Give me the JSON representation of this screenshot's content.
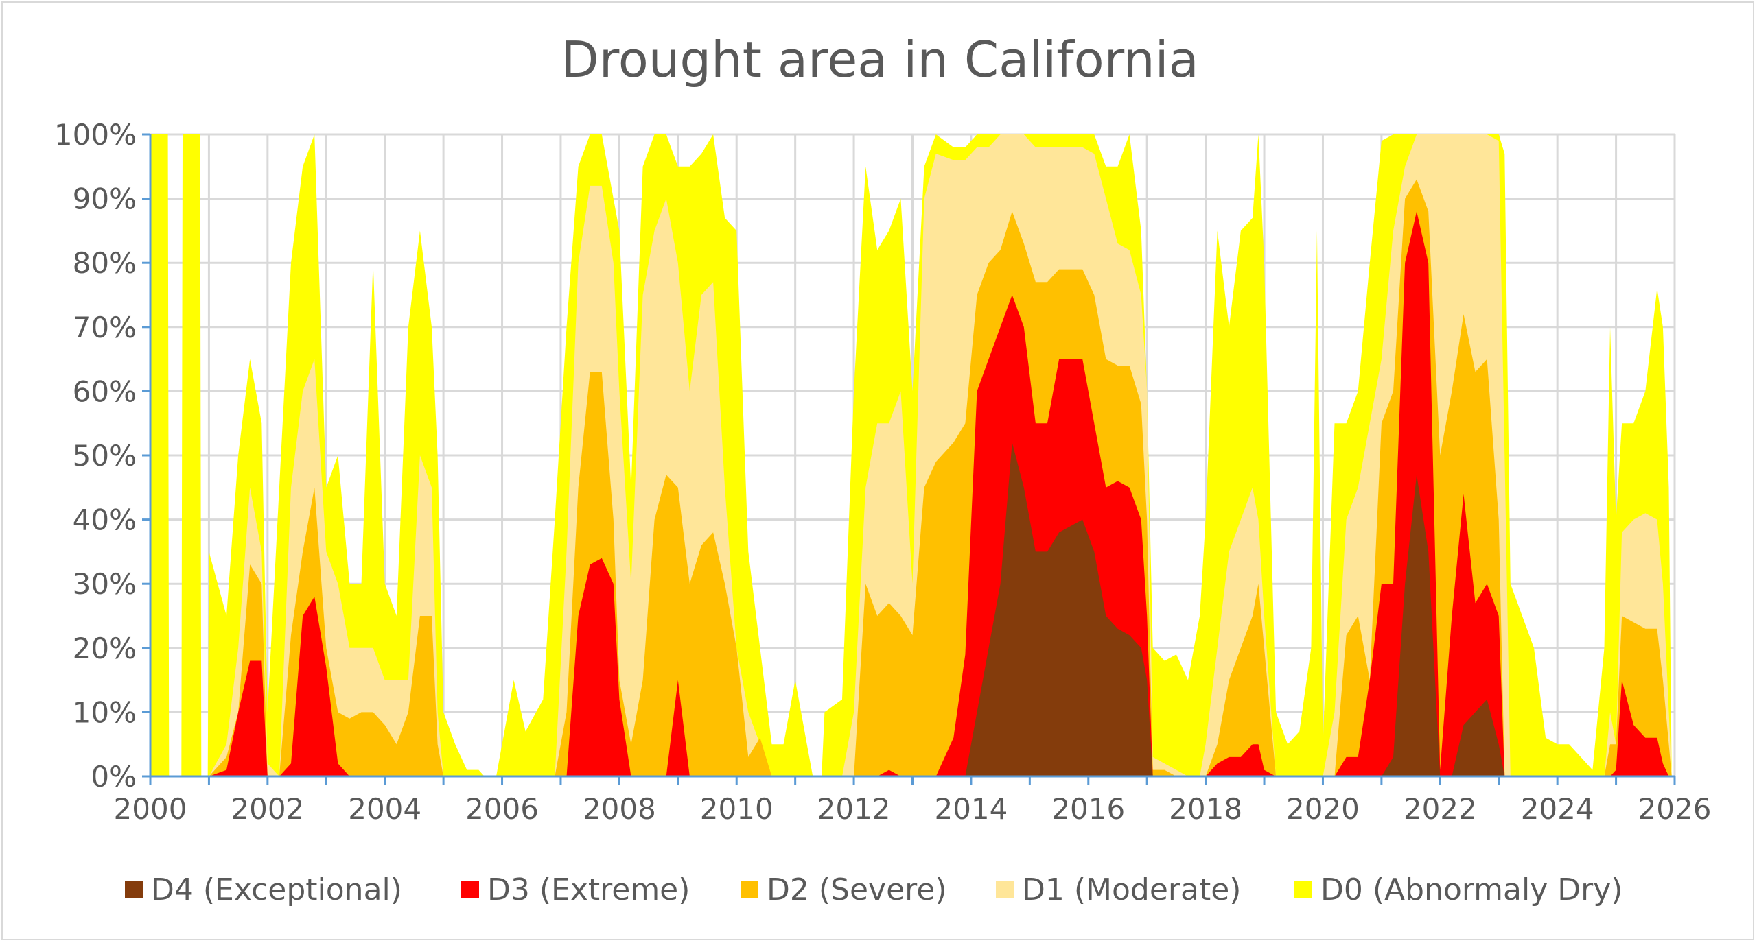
{
  "chart_data": {
    "type": "area",
    "title": "Drought area in California",
    "xlabel": "",
    "ylabel": "",
    "xlim": [
      2000,
      2026
    ],
    "ylim": [
      0,
      100
    ],
    "x_ticks": [
      "2000",
      "2002",
      "2004",
      "2006",
      "2008",
      "2010",
      "2012",
      "2014",
      "2016",
      "2018",
      "2020",
      "2022",
      "2024",
      "2026"
    ],
    "y_ticks": [
      "0%",
      "10%",
      "20%",
      "30%",
      "40%",
      "50%",
      "60%",
      "70%",
      "80%",
      "90%",
      "100%"
    ],
    "grid": true,
    "legend_position": "bottom",
    "stacking": "overlapping cumulative areas (each category includes more severe categories)",
    "series": [
      {
        "key": "D0",
        "name": "D0 (Abnormaly Dry)",
        "color": "#FFFF00"
      },
      {
        "key": "D1",
        "name": "D1 (Moderate)",
        "color": "#FFE699"
      },
      {
        "key": "D2",
        "name": "D2 (Severe)",
        "color": "#FFC000"
      },
      {
        "key": "D3",
        "name": "D3 (Extreme)",
        "color": "#FF0000"
      },
      {
        "key": "D4",
        "name": "D4 (Exceptional)",
        "color": "#843C0C"
      }
    ],
    "legend_order": [
      "D4",
      "D3",
      "D2",
      "D1",
      "D0"
    ],
    "columns": [
      "year",
      "D0",
      "D1",
      "D2",
      "D3",
      "D4"
    ],
    "rows": [
      [
        2000.0,
        100,
        0,
        0,
        0,
        0
      ],
      [
        2000.3,
        100,
        0,
        0,
        0,
        0
      ],
      [
        2000.32,
        0,
        0,
        0,
        0,
        0
      ],
      [
        2000.53,
        0,
        0,
        0,
        0,
        0
      ],
      [
        2000.55,
        100,
        0,
        0,
        0,
        0
      ],
      [
        2000.85,
        100,
        0,
        0,
        0,
        0
      ],
      [
        2000.87,
        0,
        0,
        0,
        0,
        0
      ],
      [
        2000.98,
        0,
        0,
        0,
        0,
        0
      ],
      [
        2001.0,
        35,
        0,
        0,
        0,
        0
      ],
      [
        2001.3,
        25,
        5,
        3,
        1,
        0
      ],
      [
        2001.5,
        50,
        20,
        10,
        10,
        0
      ],
      [
        2001.7,
        65,
        45,
        33,
        18,
        0
      ],
      [
        2001.9,
        55,
        35,
        30,
        18,
        0
      ],
      [
        2002.0,
        10,
        2,
        0,
        0,
        0
      ],
      [
        2002.2,
        45,
        0,
        0,
        0,
        0
      ],
      [
        2002.4,
        80,
        45,
        22,
        2,
        0
      ],
      [
        2002.6,
        95,
        60,
        35,
        25,
        0
      ],
      [
        2002.8,
        100,
        65,
        45,
        28,
        0
      ],
      [
        2003.0,
        45,
        35,
        20,
        17,
        0
      ],
      [
        2003.2,
        50,
        30,
        10,
        2,
        0
      ],
      [
        2003.4,
        30,
        20,
        9,
        0,
        0
      ],
      [
        2003.6,
        30,
        20,
        10,
        0,
        0
      ],
      [
        2003.8,
        80,
        20,
        10,
        0,
        0
      ],
      [
        2004.0,
        30,
        15,
        8,
        0,
        0
      ],
      [
        2004.2,
        25,
        15,
        5,
        0,
        0
      ],
      [
        2004.4,
        70,
        15,
        10,
        0,
        0
      ],
      [
        2004.6,
        85,
        50,
        25,
        0,
        0
      ],
      [
        2004.8,
        70,
        45,
        25,
        0,
        0
      ],
      [
        2004.9,
        50,
        10,
        5,
        0,
        0
      ],
      [
        2005.0,
        10,
        0,
        0,
        0,
        0
      ],
      [
        2005.2,
        5,
        0,
        0,
        0,
        0
      ],
      [
        2005.4,
        1,
        0,
        0,
        0,
        0
      ],
      [
        2005.6,
        1,
        0,
        0,
        0,
        0
      ],
      [
        2005.7,
        0,
        0,
        0,
        0,
        0
      ],
      [
        2005.9,
        0,
        0,
        0,
        0,
        0
      ],
      [
        2006.0,
        5,
        0,
        0,
        0,
        0
      ],
      [
        2006.2,
        15,
        0,
        0,
        0,
        0
      ],
      [
        2006.4,
        7,
        0,
        0,
        0,
        0
      ],
      [
        2006.7,
        12,
        0,
        0,
        0,
        0
      ],
      [
        2006.9,
        40,
        0,
        0,
        0,
        0
      ],
      [
        2007.1,
        70,
        35,
        10,
        0,
        0
      ],
      [
        2007.3,
        95,
        80,
        45,
        25,
        0
      ],
      [
        2007.5,
        100,
        92,
        63,
        33,
        0
      ],
      [
        2007.7,
        100,
        92,
        63,
        34,
        0
      ],
      [
        2007.9,
        90,
        80,
        40,
        30,
        0
      ],
      [
        2008.0,
        85,
        60,
        15,
        12,
        0
      ],
      [
        2008.2,
        45,
        30,
        5,
        0,
        0
      ],
      [
        2008.4,
        95,
        75,
        15,
        0,
        0
      ],
      [
        2008.6,
        100,
        85,
        40,
        0,
        0
      ],
      [
        2008.8,
        100,
        90,
        47,
        0,
        0
      ],
      [
        2009.0,
        95,
        80,
        45,
        15,
        0
      ],
      [
        2009.2,
        95,
        60,
        30,
        0,
        0
      ],
      [
        2009.4,
        97,
        75,
        36,
        0,
        0
      ],
      [
        2009.6,
        100,
        77,
        38,
        0,
        0
      ],
      [
        2009.8,
        87,
        45,
        30,
        0,
        0
      ],
      [
        2010.0,
        85,
        20,
        20,
        0,
        0
      ],
      [
        2010.2,
        35,
        10,
        3,
        0,
        0
      ],
      [
        2010.4,
        20,
        5,
        6,
        0,
        0
      ],
      [
        2010.6,
        5,
        0,
        0,
        0,
        0
      ],
      [
        2010.8,
        5,
        0,
        0,
        0,
        0
      ],
      [
        2011.0,
        15,
        0,
        0,
        0,
        0
      ],
      [
        2011.2,
        5,
        0,
        0,
        0,
        0
      ],
      [
        2011.3,
        0,
        0,
        0,
        0,
        0
      ],
      [
        2011.45,
        0,
        0,
        0,
        0,
        0
      ],
      [
        2011.5,
        10,
        0,
        0,
        0,
        0
      ],
      [
        2011.8,
        12,
        0,
        0,
        0,
        0
      ],
      [
        2012.0,
        60,
        10,
        0,
        0,
        0
      ],
      [
        2012.2,
        95,
        45,
        30,
        0,
        0
      ],
      [
        2012.4,
        82,
        55,
        25,
        0,
        0
      ],
      [
        2012.6,
        85,
        55,
        27,
        1,
        0
      ],
      [
        2012.8,
        90,
        60,
        25,
        0,
        0
      ],
      [
        2013.0,
        60,
        30,
        22,
        0,
        0
      ],
      [
        2013.2,
        95,
        90,
        45,
        0,
        0
      ],
      [
        2013.4,
        100,
        97,
        49,
        0,
        0
      ],
      [
        2013.7,
        98,
        96,
        52,
        6,
        0
      ],
      [
        2013.9,
        98,
        96,
        55,
        19,
        0
      ],
      [
        2014.1,
        100,
        98,
        75,
        60,
        10
      ],
      [
        2014.3,
        100,
        98,
        80,
        65,
        20
      ],
      [
        2014.5,
        100,
        100,
        82,
        70,
        30
      ],
      [
        2014.7,
        100,
        100,
        88,
        75,
        52
      ],
      [
        2014.9,
        100,
        100,
        83,
        70,
        45
      ],
      [
        2015.1,
        100,
        98,
        77,
        55,
        35
      ],
      [
        2015.3,
        100,
        98,
        77,
        55,
        35
      ],
      [
        2015.5,
        100,
        98,
        79,
        65,
        38
      ],
      [
        2015.7,
        100,
        98,
        79,
        65,
        39
      ],
      [
        2015.9,
        100,
        98,
        79,
        65,
        40
      ],
      [
        2016.1,
        100,
        97,
        75,
        55,
        35
      ],
      [
        2016.3,
        95,
        90,
        65,
        45,
        25
      ],
      [
        2016.5,
        95,
        83,
        64,
        46,
        23
      ],
      [
        2016.7,
        100,
        82,
        64,
        45,
        22
      ],
      [
        2016.9,
        85,
        75,
        58,
        40,
        20
      ],
      [
        2017.0,
        60,
        60,
        40,
        25,
        15
      ],
      [
        2017.1,
        20,
        3,
        1,
        0,
        0
      ],
      [
        2017.3,
        18,
        2,
        1,
        0,
        0
      ],
      [
        2017.5,
        19,
        1,
        0,
        0,
        0
      ],
      [
        2017.7,
        15,
        0,
        0,
        0,
        0
      ],
      [
        2017.9,
        25,
        0,
        0,
        0,
        0
      ],
      [
        2018.0,
        40,
        5,
        0,
        0,
        0
      ],
      [
        2018.2,
        85,
        20,
        5,
        2,
        0
      ],
      [
        2018.4,
        70,
        35,
        15,
        3,
        0
      ],
      [
        2018.6,
        85,
        40,
        20,
        3,
        0
      ],
      [
        2018.8,
        87,
        45,
        25,
        5,
        0
      ],
      [
        2018.9,
        100,
        40,
        30,
        5,
        0
      ],
      [
        2019.0,
        80,
        25,
        20,
        1,
        0
      ],
      [
        2019.2,
        10,
        0,
        0,
        0,
        0
      ],
      [
        2019.4,
        5,
        0,
        0,
        0,
        0
      ],
      [
        2019.6,
        7,
        0,
        0,
        0,
        0
      ],
      [
        2019.8,
        20,
        0,
        0,
        0,
        0
      ],
      [
        2019.9,
        85,
        0,
        0,
        0,
        0
      ],
      [
        2020.0,
        5,
        0,
        0,
        0,
        0
      ],
      [
        2020.2,
        55,
        10,
        0,
        0,
        0
      ],
      [
        2020.4,
        55,
        40,
        22,
        3,
        0
      ],
      [
        2020.6,
        60,
        45,
        25,
        3,
        0
      ],
      [
        2020.8,
        80,
        55,
        15,
        15,
        0
      ],
      [
        2021.0,
        99,
        65,
        55,
        30,
        0
      ],
      [
        2021.2,
        100,
        85,
        60,
        30,
        3
      ],
      [
        2021.4,
        100,
        95,
        90,
        80,
        30
      ],
      [
        2021.6,
        100,
        100,
        93,
        88,
        47
      ],
      [
        2021.8,
        100,
        100,
        88,
        80,
        35
      ],
      [
        2022.0,
        100,
        100,
        50,
        1,
        0
      ],
      [
        2022.2,
        100,
        100,
        60,
        25,
        0
      ],
      [
        2022.4,
        100,
        100,
        72,
        44,
        8
      ],
      [
        2022.6,
        100,
        100,
        63,
        27,
        10
      ],
      [
        2022.8,
        100,
        100,
        65,
        30,
        12
      ],
      [
        2023.0,
        100,
        99,
        40,
        25,
        5
      ],
      [
        2023.1,
        97,
        50,
        0,
        0,
        0
      ],
      [
        2023.2,
        30,
        0,
        0,
        0,
        0
      ],
      [
        2023.4,
        25,
        0,
        0,
        0,
        0
      ],
      [
        2023.6,
        20,
        0,
        0,
        0,
        0
      ],
      [
        2023.8,
        6,
        0,
        0,
        0,
        0
      ],
      [
        2024.0,
        5,
        0,
        0,
        0,
        0
      ],
      [
        2024.2,
        5,
        0,
        0,
        0,
        0
      ],
      [
        2024.4,
        3,
        0,
        0,
        0,
        0
      ],
      [
        2024.6,
        1,
        0,
        0,
        0,
        0
      ],
      [
        2024.8,
        20,
        0,
        0,
        0,
        0
      ],
      [
        2024.9,
        70,
        10,
        5,
        0,
        0
      ],
      [
        2025.0,
        40,
        5,
        5,
        1,
        0
      ],
      [
        2025.1,
        55,
        38,
        25,
        15,
        0
      ],
      [
        2025.3,
        55,
        40,
        24,
        8,
        0
      ],
      [
        2025.5,
        60,
        41,
        23,
        6,
        0
      ],
      [
        2025.7,
        76,
        40,
        23,
        6,
        0
      ],
      [
        2025.8,
        70,
        30,
        15,
        2,
        0
      ],
      [
        2025.9,
        45,
        10,
        5,
        0,
        0
      ],
      [
        2025.95,
        0,
        0,
        0,
        0,
        0
      ]
    ],
    "axis_color": "#5B9BD5",
    "grid_color": "#D9D9D9"
  }
}
